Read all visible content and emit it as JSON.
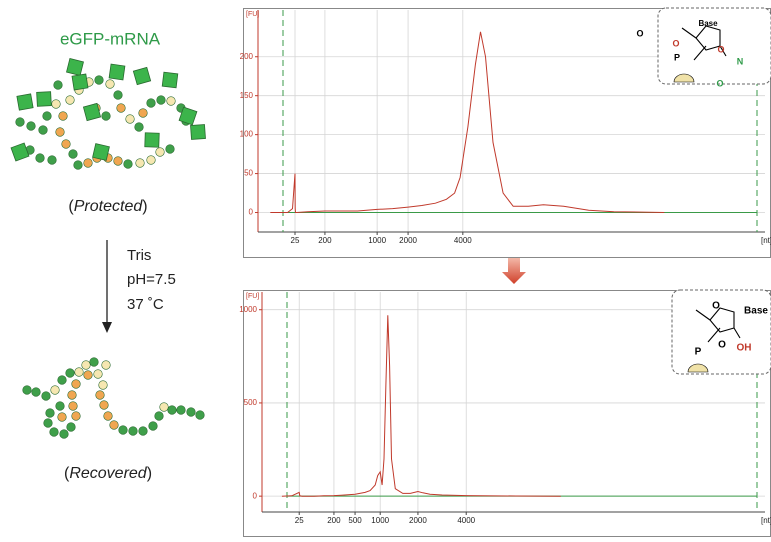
{
  "scheme": {
    "title": "eGFP-mRNA",
    "protected_label": [
      "(",
      "Protected",
      ")"
    ],
    "conditions": [
      "Tris",
      "pH=7.5",
      "37 ˚C"
    ],
    "recovered_label": [
      "(",
      "Recovered",
      ")"
    ]
  },
  "insets": [
    {
      "labels": [
        "Base",
        "O",
        "P",
        "O",
        "O",
        "O",
        "N"
      ]
    },
    {
      "labels": [
        "Base",
        "O",
        "O",
        "P",
        "OH"
      ]
    }
  ],
  "chart_data": [
    {
      "type": "line",
      "y_label": "[FU]",
      "x_label": "[nt]",
      "xlim": [
        10,
        10000
      ],
      "ylim": [
        -25,
        260
      ],
      "xticks": [
        25,
        200,
        1000,
        2000,
        4000
      ],
      "yticks": [
        0,
        50,
        100,
        150,
        200
      ],
      "grid": true,
      "x": [
        15,
        22,
        24,
        25,
        26,
        28,
        35,
        100,
        200,
        400,
        700,
        1000,
        1500,
        2000,
        2500,
        3000,
        3400,
        3700,
        3900,
        4100,
        4250,
        4350,
        4450,
        4600,
        4800,
        5000,
        5300,
        5600,
        6000,
        6500,
        7000,
        8000
      ],
      "series": [
        {
          "color": "#c0392b",
          "values": [
            0,
            0,
            5,
            50,
            5,
            0,
            0,
            1,
            2,
            2,
            2,
            4,
            5,
            7,
            9,
            12,
            17,
            25,
            45,
            110,
            190,
            232,
            200,
            90,
            25,
            8,
            8,
            10,
            8,
            3,
            1,
            0
          ]
        }
      ]
    },
    {
      "type": "line",
      "y_label": "[FU]",
      "x_label": "[nt]",
      "xlim": [
        10,
        10000
      ],
      "ylim": [
        -85,
        1095
      ],
      "xticks": [
        25,
        200,
        500,
        1000,
        2000,
        4000
      ],
      "yticks": [
        0,
        500,
        1000
      ],
      "grid": true,
      "x": [
        18,
        22,
        25,
        28,
        40,
        100,
        150,
        200,
        300,
        500,
        700,
        800,
        900,
        950,
        1000,
        1050,
        1100,
        1150,
        1200,
        1250,
        1300,
        1400,
        1600,
        1800,
        2000,
        2200,
        2500,
        3000,
        4000,
        5000,
        5900
      ],
      "series": [
        {
          "color": "#c0392b",
          "values": [
            0,
            2,
            20,
            2,
            0,
            0,
            2,
            3,
            5,
            10,
            20,
            30,
            60,
            110,
            130,
            60,
            200,
            600,
            970,
            700,
            200,
            40,
            15,
            15,
            25,
            18,
            10,
            6,
            3,
            1,
            0
          ]
        }
      ]
    }
  ]
}
